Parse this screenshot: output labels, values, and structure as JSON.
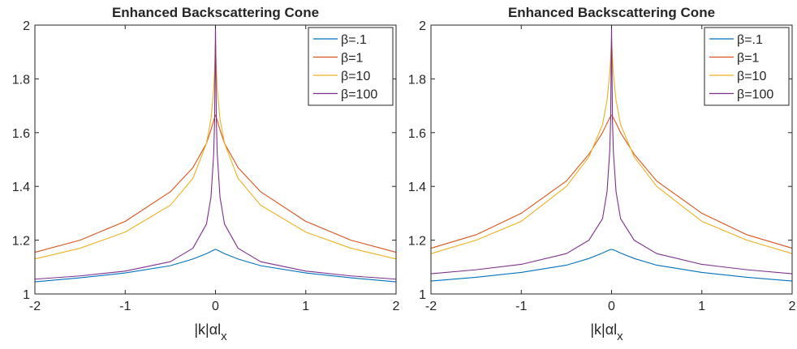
{
  "chart_data": [
    {
      "type": "line",
      "title": "Enhanced Backscattering Cone",
      "xlabel": "|k|αl_x",
      "ylabel": "",
      "xlim": [
        -2,
        2
      ],
      "ylim": [
        1,
        2
      ],
      "xticks": [
        -2,
        -1,
        0,
        1,
        2
      ],
      "yticks": [
        1,
        1.2,
        1.4,
        1.6,
        1.8,
        2
      ],
      "xtick_labels": [
        "-2",
        "-1",
        "0",
        "1",
        "2"
      ],
      "ytick_labels": [
        "1",
        "1.2",
        "1.4",
        "1.6",
        "1.8",
        "2"
      ],
      "grid": false,
      "legend_position": "top-right",
      "x": [
        -2,
        -1.5,
        -1,
        -0.5,
        -0.25,
        -0.1,
        -0.05,
        -0.02,
        -0.01,
        0,
        0.01,
        0.02,
        0.05,
        0.1,
        0.25,
        0.5,
        1,
        1.5,
        2
      ],
      "series": [
        {
          "name": "β=.1",
          "color": "#0072BD",
          "values": [
            1.045,
            1.06,
            1.078,
            1.105,
            1.13,
            1.15,
            1.158,
            1.163,
            1.165,
            1.166,
            1.165,
            1.163,
            1.158,
            1.15,
            1.13,
            1.105,
            1.078,
            1.06,
            1.045
          ]
        },
        {
          "name": "β=1",
          "color": "#D95319",
          "values": [
            1.155,
            1.2,
            1.27,
            1.38,
            1.47,
            1.56,
            1.61,
            1.645,
            1.656,
            1.665,
            1.656,
            1.645,
            1.61,
            1.56,
            1.47,
            1.38,
            1.27,
            1.2,
            1.155
          ]
        },
        {
          "name": "β=10",
          "color": "#EDB120",
          "values": [
            1.13,
            1.17,
            1.23,
            1.33,
            1.43,
            1.56,
            1.65,
            1.76,
            1.83,
            1.94,
            1.83,
            1.76,
            1.65,
            1.56,
            1.43,
            1.33,
            1.23,
            1.17,
            1.13
          ]
        },
        {
          "name": "β=100",
          "color": "#7E2F8E",
          "values": [
            1.055,
            1.067,
            1.085,
            1.12,
            1.17,
            1.26,
            1.36,
            1.52,
            1.64,
            2.0,
            1.64,
            1.52,
            1.36,
            1.26,
            1.17,
            1.12,
            1.085,
            1.067,
            1.055
          ]
        }
      ]
    },
    {
      "type": "line",
      "title": "Enhanced Backscattering Cone",
      "xlabel": "|k|αl_x",
      "ylabel": "",
      "xlim": [
        -2,
        2
      ],
      "ylim": [
        1,
        2
      ],
      "xticks": [
        -2,
        -1,
        0,
        1,
        2
      ],
      "yticks": [
        1,
        1.2,
        1.4,
        1.6,
        1.8,
        2
      ],
      "xtick_labels": [
        "-2",
        "-1",
        "0",
        "1",
        "2"
      ],
      "ytick_labels": [
        "1",
        "1.2",
        "1.4",
        "1.6",
        "1.8",
        "2"
      ],
      "grid": false,
      "legend_position": "top-right",
      "x": [
        -2,
        -1.5,
        -1,
        -0.5,
        -0.25,
        -0.1,
        -0.05,
        -0.02,
        -0.01,
        0,
        0.01,
        0.02,
        0.05,
        0.1,
        0.25,
        0.5,
        1,
        1.5,
        2
      ],
      "series": [
        {
          "name": "β=.1",
          "color": "#0072BD",
          "values": [
            1.048,
            1.062,
            1.08,
            1.107,
            1.132,
            1.152,
            1.16,
            1.164,
            1.165,
            1.166,
            1.165,
            1.164,
            1.16,
            1.152,
            1.132,
            1.107,
            1.08,
            1.062,
            1.048
          ]
        },
        {
          "name": "β=1",
          "color": "#D95319",
          "values": [
            1.17,
            1.22,
            1.3,
            1.42,
            1.52,
            1.6,
            1.635,
            1.655,
            1.66,
            1.665,
            1.66,
            1.655,
            1.635,
            1.6,
            1.52,
            1.42,
            1.3,
            1.22,
            1.17
          ]
        },
        {
          "name": "β=10",
          "color": "#EDB120",
          "values": [
            1.15,
            1.2,
            1.27,
            1.4,
            1.51,
            1.63,
            1.72,
            1.82,
            1.88,
            1.95,
            1.88,
            1.82,
            1.72,
            1.63,
            1.51,
            1.4,
            1.27,
            1.2,
            1.15
          ]
        },
        {
          "name": "β=100",
          "color": "#7E2F8E",
          "values": [
            1.075,
            1.09,
            1.11,
            1.15,
            1.2,
            1.28,
            1.38,
            1.53,
            1.65,
            2.0,
            1.65,
            1.53,
            1.38,
            1.28,
            1.2,
            1.15,
            1.11,
            1.09,
            1.075
          ]
        }
      ]
    }
  ]
}
